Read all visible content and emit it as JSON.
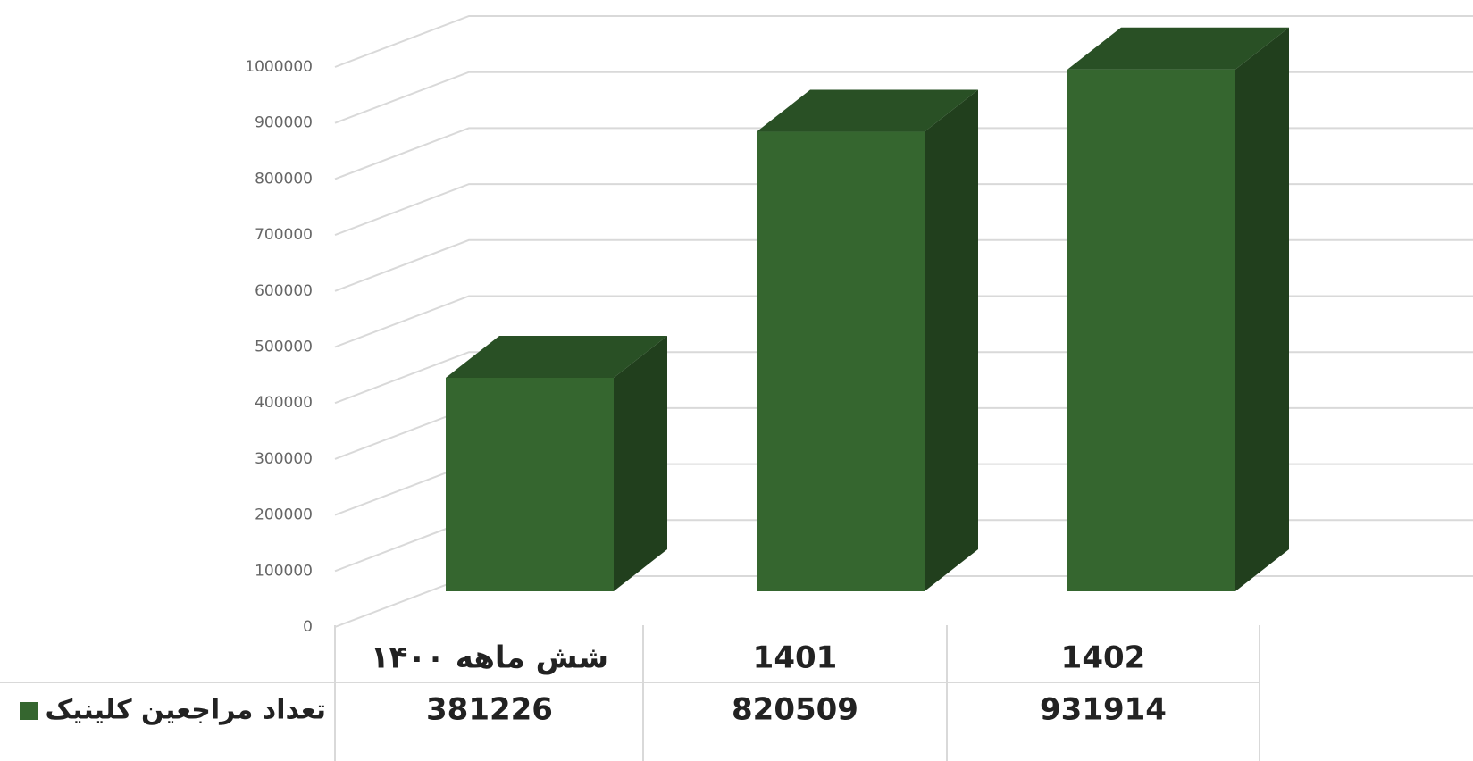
{
  "chart_data": {
    "type": "bar3d",
    "categories": [
      "شش ماهه ۱۴۰۰",
      "1401",
      "1402"
    ],
    "series": [
      {
        "name": "تعداد مراجعین کلینیک",
        "color": "#35662f",
        "values": [
          381226,
          820509,
          931914
        ]
      }
    ],
    "ylim": [
      0,
      1000000
    ],
    "yticks": [
      0,
      100000,
      200000,
      300000,
      400000,
      500000,
      600000,
      700000,
      800000,
      900000,
      1000000
    ],
    "grid": true
  }
}
